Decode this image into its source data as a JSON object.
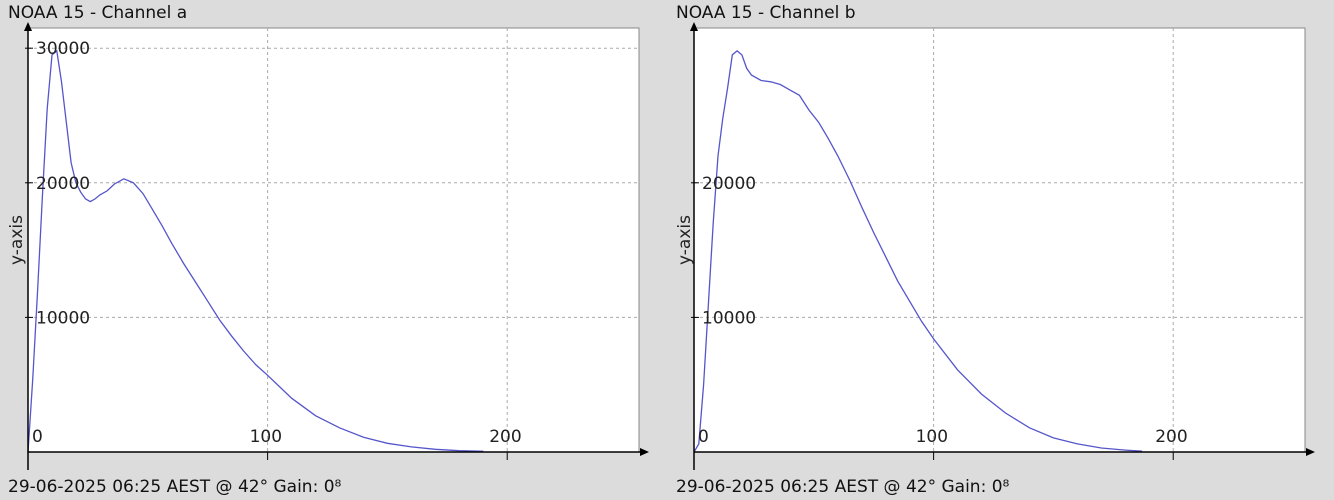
{
  "charts": [
    {
      "title": "NOAA 15 - Channel a",
      "footer": "29-06-2025 06:25 AEST @ 42° Gain: 0⁸"
    },
    {
      "title": "NOAA 15 - Channel b",
      "footer": "29-06-2025 06:25 AEST @ 42° Gain: 0⁸"
    }
  ],
  "colors": {
    "background": "#dcdcdc",
    "plot_area": "#ffffff",
    "line": "#5555cc",
    "grid": "#aaaaaa",
    "axis": "#000000"
  },
  "chart_data": [
    {
      "type": "line",
      "title": "NOAA 15 - Channel a",
      "xlabel": "",
      "ylabel": "y-axis",
      "xlim": [
        0,
        255
      ],
      "ylim": [
        0,
        31500
      ],
      "xticks": [
        0,
        100,
        200
      ],
      "yticks": [
        10000,
        20000,
        30000
      ],
      "grid": true,
      "series": [
        {
          "x": [
            0,
            2,
            4,
            6,
            8,
            10,
            12,
            14,
            16,
            18,
            20,
            22,
            24,
            26,
            28,
            30,
            33,
            36,
            40,
            44,
            48,
            52,
            56,
            60,
            65,
            70,
            75,
            80,
            85,
            90,
            95,
            100,
            110,
            120,
            130,
            140,
            150,
            160,
            170,
            180,
            190
          ],
          "y": [
            0,
            5500,
            12000,
            19000,
            25500,
            29500,
            29800,
            27500,
            24500,
            21500,
            20000,
            19300,
            18800,
            18600,
            18800,
            19100,
            19400,
            19900,
            20300,
            20000,
            19200,
            18000,
            16800,
            15500,
            14000,
            12600,
            11200,
            9800,
            8600,
            7500,
            6500,
            5700,
            4000,
            2700,
            1800,
            1100,
            650,
            380,
            200,
            100,
            50
          ]
        }
      ]
    },
    {
      "type": "line",
      "title": "NOAA 15 - Channel b",
      "xlabel": "",
      "ylabel": "y-axis",
      "xlim": [
        0,
        255
      ],
      "ylim": [
        0,
        31500
      ],
      "xticks": [
        0,
        100,
        200
      ],
      "yticks": [
        10000,
        20000
      ],
      "grid": true,
      "series": [
        {
          "x": [
            0,
            2,
            4,
            6,
            8,
            10,
            12,
            14,
            16,
            18,
            20,
            22,
            24,
            28,
            32,
            36,
            40,
            44,
            48,
            52,
            56,
            60,
            65,
            70,
            75,
            80,
            85,
            90,
            95,
            100,
            110,
            120,
            130,
            140,
            150,
            160,
            170,
            180,
            187
          ],
          "y": [
            0,
            600,
            5000,
            11000,
            17000,
            22000,
            24800,
            27000,
            29500,
            29800,
            29500,
            28500,
            28000,
            27600,
            27500,
            27300,
            26900,
            26500,
            25400,
            24500,
            23300,
            22000,
            20200,
            18200,
            16300,
            14500,
            12700,
            11200,
            9700,
            8400,
            6100,
            4300,
            2900,
            1800,
            1050,
            600,
            300,
            140,
            60
          ]
        }
      ]
    }
  ]
}
